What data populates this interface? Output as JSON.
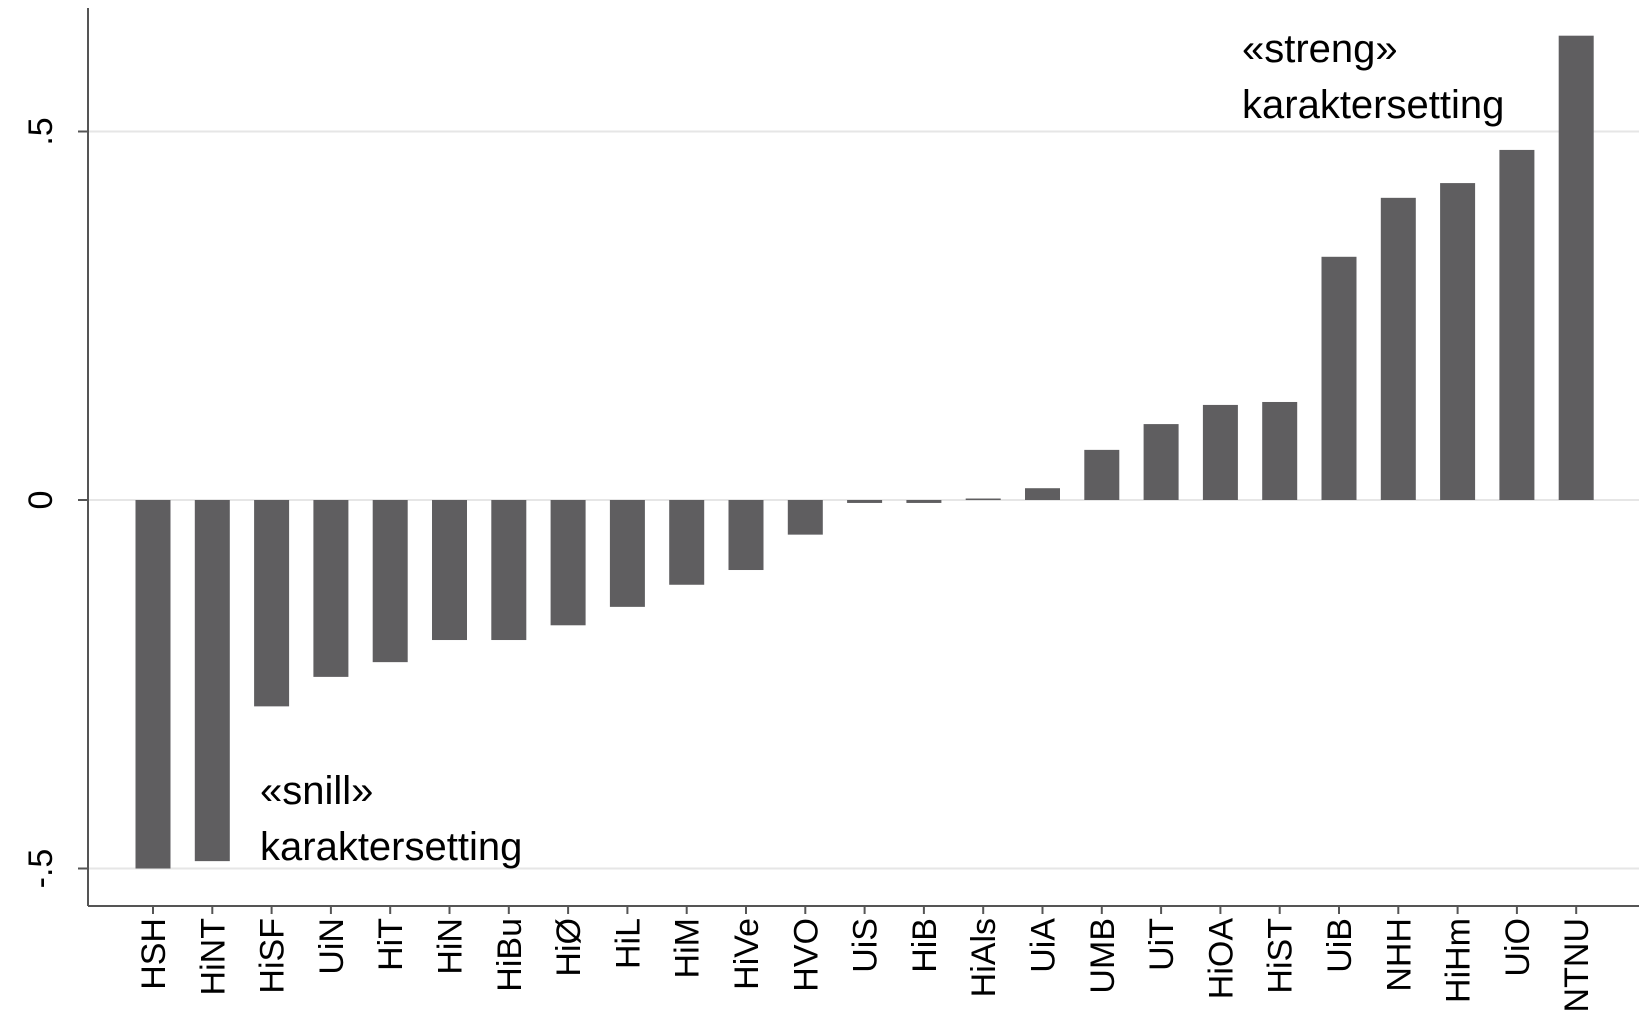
{
  "chart_data": {
    "type": "bar",
    "categories": [
      "HSH",
      "HiNT",
      "HiSF",
      "UiN",
      "HiT",
      "HiN",
      "HiBu",
      "HiØ",
      "HiL",
      "HiM",
      "HiVe",
      "HVO",
      "UiS",
      "HiB",
      "HiAls",
      "UiA",
      "UMB",
      "UiT",
      "HiOA",
      "HiST",
      "UiB",
      "NHH",
      "HiHm",
      "UiO",
      "NTNU"
    ],
    "values": [
      -0.5,
      -0.49,
      -0.28,
      -0.24,
      -0.22,
      -0.19,
      -0.19,
      -0.17,
      -0.145,
      -0.115,
      -0.095,
      -0.047,
      -0.004,
      -0.004,
      0.002,
      0.016,
      0.068,
      0.103,
      0.129,
      0.133,
      0.33,
      0.41,
      0.43,
      0.475,
      0.63
    ],
    "yticks": [
      {
        "value": 0.5,
        "label": ".5"
      },
      {
        "value": 0,
        "label": "0"
      },
      {
        "value": -0.5,
        "label": "-.5"
      }
    ],
    "ylim": [
      -0.55,
      0.67
    ],
    "grid": true,
    "title": "",
    "xlabel": "",
    "ylabel": "",
    "annotations": [
      {
        "lines": [
          "«streng»",
          "karaktersetting"
        ]
      },
      {
        "lines": [
          "«snill»",
          "karaktersetting"
        ]
      }
    ],
    "colors": {
      "bar": "#5f5e60",
      "grid": "#e6e6e6",
      "axis": "#555555"
    }
  }
}
